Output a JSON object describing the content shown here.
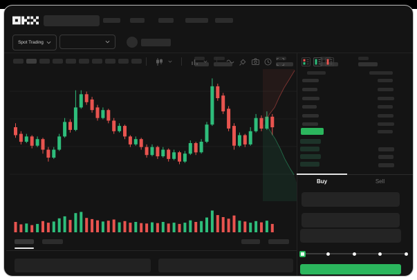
{
  "app": {
    "logo_text": "OKX"
  },
  "colors": {
    "up": "#2EBD7B",
    "down": "#E8544F",
    "accent": "#2BB65D",
    "window_bg": "#141414"
  },
  "top_nav": {
    "search_placeholder": "",
    "nav_placeholder_count": 5
  },
  "market_header": {
    "trading_mode": {
      "label": "Spot Trading",
      "chevron": "down"
    },
    "pair_selector": {
      "selected_label": "",
      "chevron": "down"
    },
    "stat_placeholder_count": 5
  },
  "chart_toolbar": {
    "timeframe_placeholder_count": 10,
    "active_timeframe_index": 1,
    "tools": [
      "chart-type",
      "indicators",
      "line-tool",
      "draw-tool",
      "camera",
      "history",
      "fullscreen"
    ]
  },
  "order_book": {
    "view_modes": [
      {
        "name": "book-both",
        "active": false
      },
      {
        "name": "book-bids",
        "active": true
      },
      {
        "name": "book-asks",
        "active": false
      }
    ],
    "ask_row_count": 6,
    "bid_row_count": 4,
    "last_price_highlight_color": "#2BB65D"
  },
  "trade_panel": {
    "tabs": [
      {
        "label": "Buy",
        "active": true
      },
      {
        "label": "Sell",
        "active": false
      }
    ],
    "field_count": 3,
    "slider": {
      "stops": 5,
      "selected_index": 0
    },
    "submit_button": {
      "label": "",
      "color": "#2BB65D"
    }
  },
  "bottom_panel": {
    "tab_placeholder_count": 2,
    "active_tab_index": 0,
    "button_placeholder_count": 2,
    "row_placeholder_count": 2
  },
  "chart_data": {
    "type": "candlestick",
    "title": "",
    "grid": "horizontal_only",
    "x_axis": {
      "labels_visible": false
    },
    "y_axis": {
      "labels_visible": false,
      "scale": "normalized_0_100"
    },
    "ohlc_format": [
      "open",
      "high",
      "low",
      "close"
    ],
    "candles": [
      [
        56,
        59,
        48,
        50
      ],
      [
        51,
        53,
        43,
        45
      ],
      [
        45,
        51,
        44,
        49
      ],
      [
        49,
        50,
        40,
        42
      ],
      [
        42,
        49,
        41,
        47
      ],
      [
        47,
        48,
        36,
        39
      ],
      [
        39,
        41,
        30,
        33
      ],
      [
        33,
        41,
        32,
        39
      ],
      [
        39,
        51,
        38,
        49
      ],
      [
        49,
        63,
        48,
        60
      ],
      [
        60,
        62,
        52,
        54
      ],
      [
        54,
        84,
        53,
        71
      ],
      [
        71,
        84,
        70,
        81
      ],
      [
        81,
        83,
        73,
        75
      ],
      [
        77,
        79,
        67,
        69
      ],
      [
        71,
        73,
        61,
        63
      ],
      [
        63,
        71,
        62,
        69
      ],
      [
        69,
        70,
        59,
        61
      ],
      [
        61,
        63,
        51,
        53
      ],
      [
        53,
        59,
        52,
        57
      ],
      [
        57,
        58,
        47,
        49
      ],
      [
        49,
        50,
        41,
        43
      ],
      [
        43,
        49,
        42,
        47
      ],
      [
        47,
        48,
        39,
        41
      ],
      [
        41,
        43,
        33,
        35
      ],
      [
        35,
        43,
        34,
        41
      ],
      [
        41,
        42,
        32,
        34
      ],
      [
        34,
        41,
        33,
        39
      ],
      [
        39,
        40,
        30,
        32
      ],
      [
        32,
        39,
        31,
        37
      ],
      [
        37,
        38,
        28,
        30
      ],
      [
        30,
        38,
        29,
        36
      ],
      [
        36,
        46,
        35,
        44
      ],
      [
        44,
        45,
        35,
        37
      ],
      [
        37,
        47,
        36,
        45
      ],
      [
        45,
        60,
        44,
        58
      ],
      [
        58,
        93,
        57,
        87
      ],
      [
        87,
        89,
        76,
        78
      ],
      [
        80,
        82,
        66,
        68
      ],
      [
        70,
        72,
        53,
        55
      ],
      [
        57,
        59,
        39,
        42
      ],
      [
        42,
        52,
        41,
        50
      ],
      [
        50,
        51,
        41,
        43
      ],
      [
        43,
        56,
        42,
        53
      ],
      [
        53,
        66,
        52,
        63
      ],
      [
        63,
        65,
        53,
        55
      ],
      [
        55,
        68,
        54,
        64
      ],
      [
        64,
        66,
        50,
        56
      ]
    ],
    "volume": [
      38,
      26,
      30,
      22,
      28,
      42,
      34,
      40,
      56,
      66,
      48,
      82,
      88,
      58,
      52,
      46,
      40,
      44,
      50,
      36,
      42,
      34,
      38,
      32,
      30,
      36,
      32,
      38,
      30,
      34,
      28,
      34,
      46,
      38,
      42,
      60,
      95,
      72,
      62,
      54,
      70,
      44,
      40,
      34,
      42,
      36,
      44,
      28
    ],
    "depth_profile": {
      "orientation": "vertical",
      "ask_curve": [
        [
          94,
          1
        ],
        [
          80,
          7
        ],
        [
          63,
          14
        ],
        [
          49,
          21
        ],
        [
          35,
          29
        ],
        [
          20,
          34
        ],
        [
          10,
          38
        ]
      ],
      "bid_curve": [
        [
          10,
          42
        ],
        [
          22,
          47
        ],
        [
          37,
          53
        ],
        [
          51,
          60
        ],
        [
          65,
          68
        ],
        [
          80,
          75
        ],
        [
          92,
          80
        ]
      ]
    }
  }
}
